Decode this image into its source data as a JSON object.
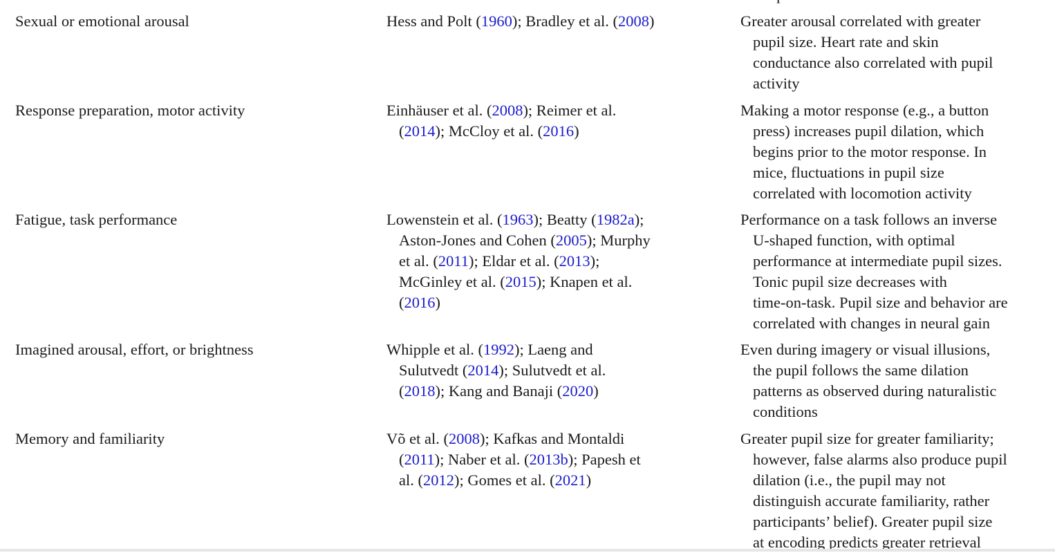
{
  "clipped_top_text": "are present or not",
  "rows": [
    {
      "topic": "Sexual or emotional arousal",
      "studies": [
        [
          [
            "Hess and Polt (",
            false
          ],
          [
            "1960",
            true
          ],
          [
            "); Bradley et al. (",
            false
          ],
          [
            "2008",
            true
          ],
          [
            ")",
            false
          ]
        ]
      ],
      "findings": [
        "Greater arousal correlated with greater",
        "pupil size. Heart rate and skin",
        "conductance also correlated with pupil",
        "activity"
      ]
    },
    {
      "topic": "Response preparation, motor activity",
      "studies": [
        [
          [
            "Einhäuser et al. (",
            false
          ],
          [
            "2008",
            true
          ],
          [
            "); Reimer et al.",
            false
          ]
        ],
        [
          [
            "(",
            false
          ],
          [
            "2014",
            true
          ],
          [
            "); McCloy et al. (",
            false
          ],
          [
            "2016",
            true
          ],
          [
            ")",
            false
          ]
        ]
      ],
      "findings": [
        "Making a motor response (e.g., a button",
        "press) increases pupil dilation, which",
        "begins prior to the motor response. In",
        "mice, fluctuations in pupil size",
        "correlated with locomotion activity"
      ]
    },
    {
      "topic": "Fatigue, task performance",
      "studies": [
        [
          [
            "Lowenstein et al. (",
            false
          ],
          [
            "1963",
            true
          ],
          [
            "); Beatty (",
            false
          ],
          [
            "1982a",
            true
          ],
          [
            ");",
            false
          ]
        ],
        [
          [
            "Aston-Jones and Cohen (",
            false
          ],
          [
            "2005",
            true
          ],
          [
            "); Murphy",
            false
          ]
        ],
        [
          [
            "et al. (",
            false
          ],
          [
            "2011",
            true
          ],
          [
            "); Eldar et al. (",
            false
          ],
          [
            "2013",
            true
          ],
          [
            ");",
            false
          ]
        ],
        [
          [
            "McGinley et al. (",
            false
          ],
          [
            "2015",
            true
          ],
          [
            "); Knapen et al.",
            false
          ]
        ],
        [
          [
            "(",
            false
          ],
          [
            "2016",
            true
          ],
          [
            ")",
            false
          ]
        ]
      ],
      "findings": [
        "Performance on a task follows an inverse",
        "U-shaped function, with optimal",
        "performance at intermediate pupil sizes.",
        "Tonic pupil size decreases with",
        "time-on-task. Pupil size and behavior are",
        "correlated with changes in neural gain"
      ]
    },
    {
      "topic": "Imagined arousal, effort, or brightness",
      "studies": [
        [
          [
            "Whipple et al. (",
            false
          ],
          [
            "1992",
            true
          ],
          [
            "); Laeng and",
            false
          ]
        ],
        [
          [
            "Sulutvedt (",
            false
          ],
          [
            "2014",
            true
          ],
          [
            "); Sulutvedt et al.",
            false
          ]
        ],
        [
          [
            "(",
            false
          ],
          [
            "2018",
            true
          ],
          [
            "); Kang and Banaji (",
            false
          ],
          [
            "2020",
            true
          ],
          [
            ")",
            false
          ]
        ]
      ],
      "findings": [
        "Even during imagery or visual illusions,",
        "the pupil follows the same dilation",
        "patterns as observed during naturalistic",
        "conditions"
      ]
    },
    {
      "topic": "Memory and familiarity",
      "studies": [
        [
          [
            "Võ et al. (",
            false
          ],
          [
            "2008",
            true
          ],
          [
            "); Kafkas and Montaldi",
            false
          ]
        ],
        [
          [
            "(",
            false
          ],
          [
            "2011",
            true
          ],
          [
            "); Naber et al. (",
            false
          ],
          [
            "2013b",
            true
          ],
          [
            "); Papesh et",
            false
          ]
        ],
        [
          [
            "al. (",
            false
          ],
          [
            "2012",
            true
          ],
          [
            "); Gomes et al. (",
            false
          ],
          [
            "2021",
            true
          ],
          [
            ")",
            false
          ]
        ]
      ],
      "findings": [
        "Greater pupil size for greater familiarity;",
        "however, false alarms also produce pupil",
        "dilation (i.e., the pupil may not",
        "distinguish accurate familiarity, rather",
        "participants’ belief). Greater pupil size",
        "at encoding predicts greater retrieval"
      ]
    }
  ]
}
